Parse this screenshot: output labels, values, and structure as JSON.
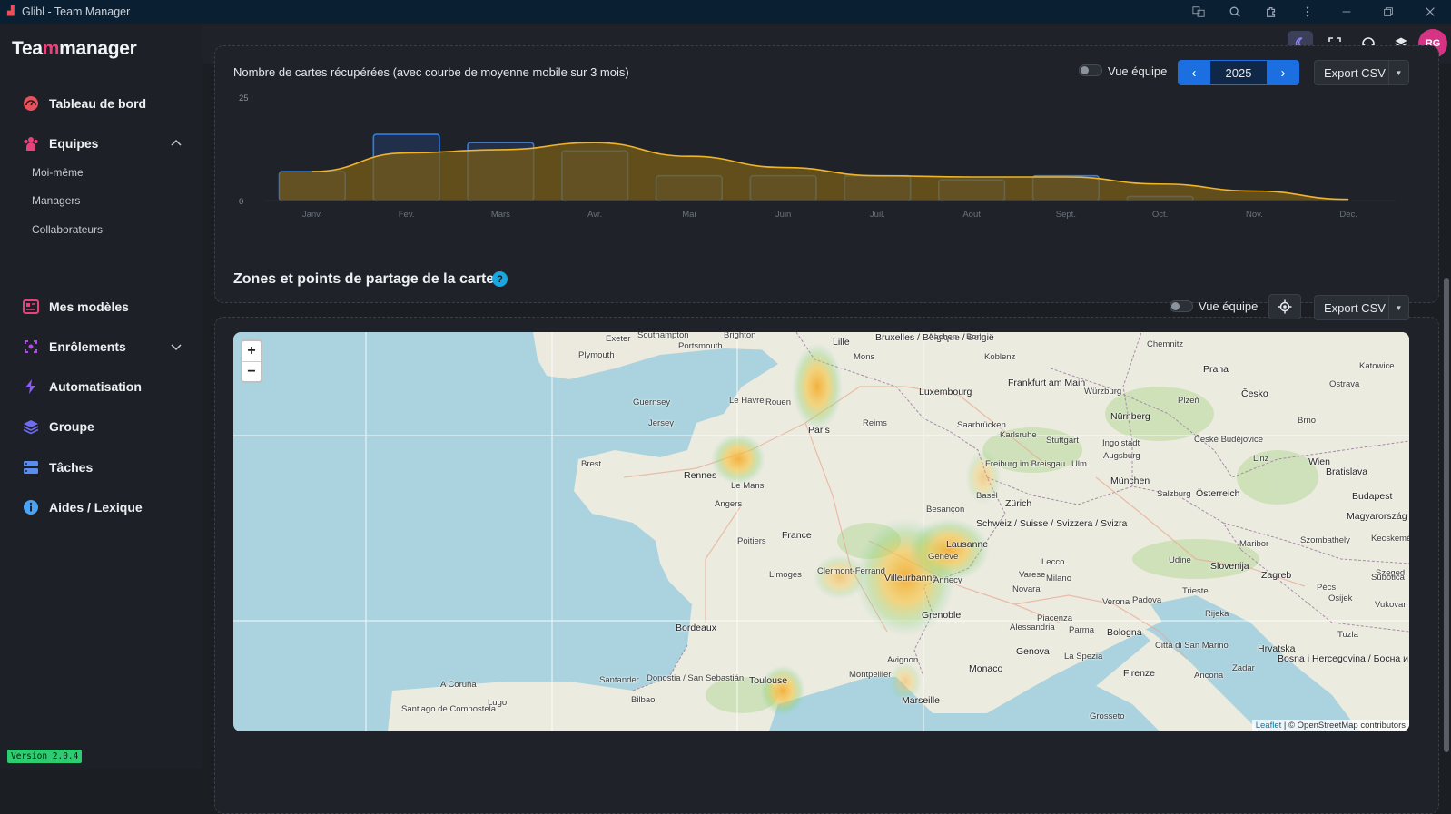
{
  "window": {
    "title": "Glibl - Team Manager"
  },
  "brand": {
    "logo_text_a": "Tea",
    "logo_text_m": "m",
    "logo_text_b": "manager"
  },
  "sidebar": {
    "items": [
      {
        "label": "Tableau de bord",
        "icon": "dashboard-icon"
      },
      {
        "label": "Equipes",
        "icon": "team-icon"
      },
      {
        "label": "Mes modèles",
        "icon": "templates-icon"
      },
      {
        "label": "Enrôlements",
        "icon": "enrollment-icon"
      },
      {
        "label": "Automatisation",
        "icon": "lightning-icon"
      },
      {
        "label": "Groupe",
        "icon": "layers-icon"
      },
      {
        "label": "Tâches",
        "icon": "tasks-icon"
      },
      {
        "label": "Aides / Lexique",
        "icon": "info-icon"
      }
    ],
    "sub_items": [
      "Moi-même",
      "Managers",
      "Collaborateurs"
    ],
    "version": "Version 2.0.4"
  },
  "header": {
    "avatar_initials": "RG"
  },
  "chart_card": {
    "title": "Nombre de cartes récupérées (avec courbe de moyenne mobile sur 3 mois)",
    "team_view_label": "Vue équipe",
    "year": "2025",
    "prev_label": "‹",
    "next_label": "›",
    "export_label": "Export CSV"
  },
  "chart_data": {
    "type": "bar",
    "categories": [
      "Janv.",
      "Fev.",
      "Mars",
      "Avr.",
      "Mai",
      "Juin",
      "Juil.",
      "Aout",
      "Sept.",
      "Oct.",
      "Nov.",
      "Dec."
    ],
    "values": [
      7,
      16,
      14,
      12,
      6,
      6,
      6,
      5,
      6,
      1,
      0,
      0
    ],
    "moving_average": [
      7,
      11.5,
      12.3,
      14,
      10.7,
      8,
      6,
      5.7,
      5.7,
      4,
      2.3,
      0.3
    ],
    "ylim": [
      0,
      25
    ],
    "yticks": [
      "25",
      "0"
    ],
    "colors": {
      "bar_stroke": "#2f7de1",
      "bar_fill": "#23345a",
      "line": "#f0b429",
      "area": "#7a5d17"
    }
  },
  "map_card": {
    "title": "Zones et points de partage de la carte",
    "team_view_label": "Vue équipe",
    "export_label": "Export CSV",
    "zoom_in": "+",
    "zoom_out": "−",
    "attribution_leaflet": "Leaflet",
    "attribution_rest": "| © OpenStreetMap contributors",
    "places": [
      "Plymouth",
      "Exeter",
      "Southampton",
      "Portsmouth",
      "Brighton",
      "Guernsey",
      "Jersey",
      "Le Havre",
      "Rouen",
      "Lille",
      "Mons",
      "Bruxelles / Belgique / België",
      "Aachen",
      "Bonn",
      "Koblenz",
      "Frankfurt am Main",
      "Würzburg",
      "Praha",
      "Nürnberg",
      "Paris",
      "Reims",
      "Luxembourg",
      "Saarbrücken",
      "Karlsruhe",
      "Stuttgart",
      "Ingolstadt",
      "Augsburg",
      "München",
      "Brest",
      "Rennes",
      "Le Mans",
      "Angers",
      "Freiburg im Breisgau",
      "Basel",
      "Zürich",
      "Ulm",
      "Wien",
      "Bratislava",
      "Budapest",
      "Besançon",
      "France",
      "Poitiers",
      "Limoges",
      "Clermont-Ferrand",
      "Villeurbanne",
      "Lausanne",
      "Genève",
      "Annecy",
      "Schweiz / Suisse / Svizzera / Svizra",
      "Salzburg",
      "Österreich",
      "Slovenija",
      "Zagreb",
      "Milano",
      "Varese",
      "Novara",
      "Verona",
      "Padova",
      "Trieste",
      "Grenoble",
      "Bordeaux",
      "Alessandria",
      "Parma",
      "Bologna",
      "Genova",
      "Monaco",
      "Avignon",
      "Montpellier",
      "Toulouse",
      "Marseille",
      "La Spezia",
      "Firenze",
      "Città di San Marino",
      "Ancona",
      "Santander",
      "Donostia / San Sebastián",
      "Bilbao",
      "A Coruña",
      "Lugo",
      "Santiago de Compostela",
      "Hrvatska",
      "Bosna i Hercegovina / Босна и Херцеговина",
      "Magyarország",
      "Pécs",
      "Osijek",
      "Rijeka",
      "Zadar",
      "Katowice",
      "Chemnitz",
      "Ostrava",
      "Brno",
      "Česko",
      "Plzeň",
      "České Budějovice",
      "Linz",
      "Szombathely",
      "Kecskemét",
      "Szeged",
      "Subotica",
      "Udine",
      "Maribor",
      "Vukovar",
      "Grosseto",
      "Tuzla",
      "Lecco",
      "Piacenza"
    ]
  }
}
